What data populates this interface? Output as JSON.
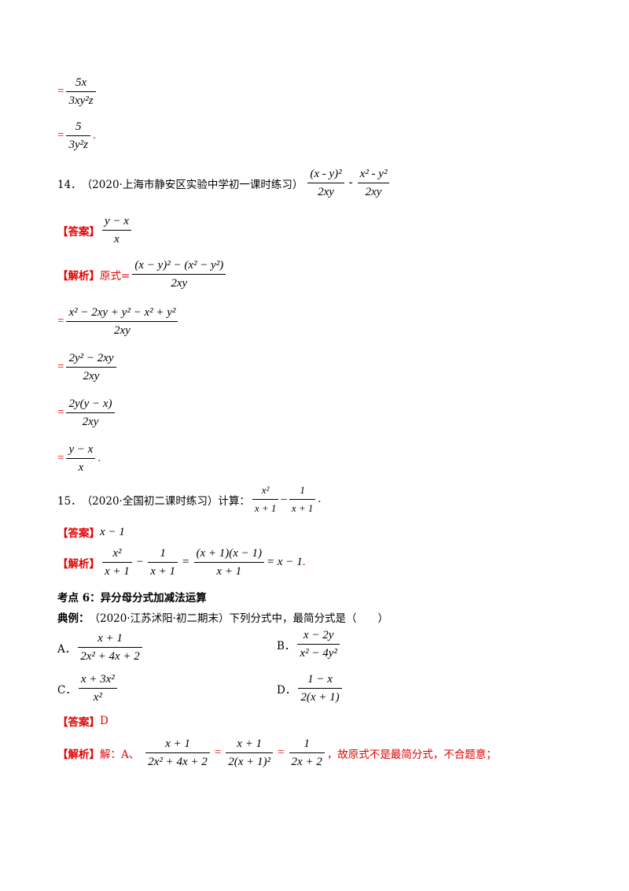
{
  "fragments": {
    "eq": "=",
    "period_red": ".",
    "period_red_cn": "。",
    "minus": "−",
    "hyphen_minus": "-",
    "dash_minus": "–"
  },
  "top": {
    "line1": {
      "num": "5x",
      "den": "3xy²z"
    },
    "line2": {
      "num": "5",
      "den": "3y²z"
    }
  },
  "q14": {
    "number": "14．",
    "source": "（2020·上海市静安区实验中学初一课时练习）",
    "expr1_num": "(x - y)²",
    "expr1_den": "2xy",
    "expr2_num": "x² - y²",
    "expr2_den": "2xy",
    "answer_label": "【答案】",
    "answer_num": "y − x",
    "answer_den": "x",
    "analysis_label": "【解析】",
    "analysis_prefix": "原式=",
    "steps": [
      {
        "num": "(x − y)² − (x² − y²)",
        "den": "2xy"
      },
      {
        "num": "x² − 2xy + y² − x² + y²",
        "den": "2xy"
      },
      {
        "num": "2y² − 2xy",
        "den": "2xy"
      },
      {
        "num": "2y(y − x)",
        "den": "2xy"
      },
      {
        "num": "y − x",
        "den": "x"
      }
    ]
  },
  "q15": {
    "number": "15．",
    "source": "（2020·全国初二课时练习）计算：",
    "num1": "x²",
    "den1": "x + 1",
    "num2": "1",
    "den2": "x + 1",
    "answer_label": "【答案】",
    "answer": "x − 1",
    "analysis_label": "【解析】",
    "a_num1": "x²",
    "a_den1": "x + 1",
    "a_num2": "1",
    "a_den2": "x + 1",
    "a_num3": "(x + 1)(x − 1)",
    "a_den3": "x + 1",
    "a_result": "= x − 1"
  },
  "section": {
    "title": "考点 6：异分母分式加减法运算",
    "example_label": "典例：",
    "example_text": "（2020·江苏沭阳·初二期末）下列分式中，最简分式是（　　）"
  },
  "options": [
    {
      "label": "A．",
      "num": "x + 1",
      "den": "2x² + 4x + 2"
    },
    {
      "label": "B．",
      "num": "x − 2y",
      "den": "x² − 4y²"
    },
    {
      "label": "C．",
      "num": "x + 3x²",
      "den": "x²"
    },
    {
      "label": "D．",
      "num": "1 − x",
      "den": "2(x + 1)"
    }
  ],
  "q16": {
    "answer_label": "【答案】",
    "answer": "D",
    "analysis_label": "【解析】",
    "analysis_prefix": "解：A、",
    "f1_num": "x + 1",
    "f1_den": "2x² + 4x + 2",
    "f2_num": "x + 1",
    "f2_den": "2(x + 1)²",
    "f3_num": "1",
    "f3_den": "2x + 2",
    "conclusion": "，故原式不是最简分式，不合题意；"
  }
}
